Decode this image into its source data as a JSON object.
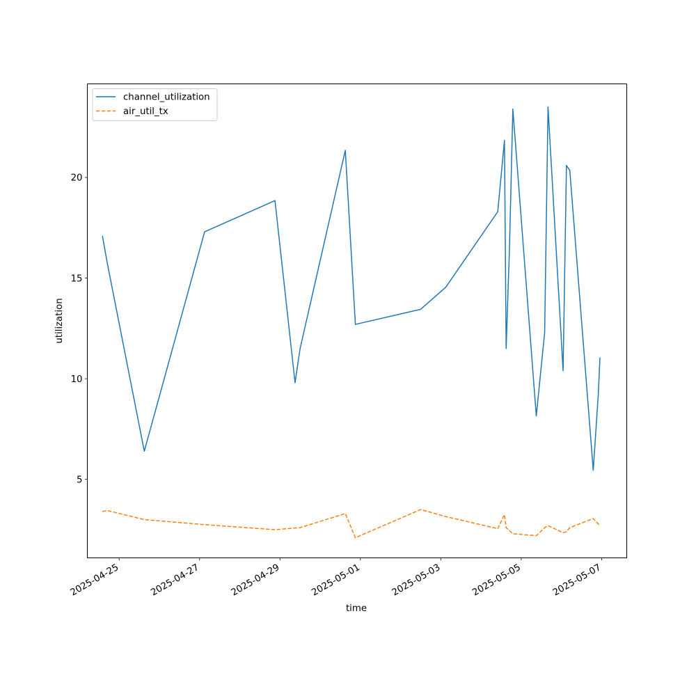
{
  "chart_data": {
    "type": "line",
    "xlabel": "time",
    "ylabel": "utilization",
    "x_type": "datetime",
    "xlim": [
      "2025-04-24T05:00",
      "2025-05-07T15:00"
    ],
    "ylim": [
      1.1,
      24.65
    ],
    "x_ticks": [
      "2025-04-25",
      "2025-04-27",
      "2025-04-29",
      "2025-05-01",
      "2025-05-03",
      "2025-05-05",
      "2025-05-07"
    ],
    "y_ticks": [
      5,
      10,
      15,
      20
    ],
    "grid": false,
    "legend_position": "upper left",
    "series": [
      {
        "name": "channel_utilization",
        "color": "#1f77b4",
        "linestyle": "solid",
        "points": [
          [
            "2025-04-24T14:00",
            17.1
          ],
          [
            "2025-04-24T17:00",
            15.7
          ],
          [
            "2025-04-25T15:00",
            6.4
          ],
          [
            "2025-04-27T03:00",
            17.3
          ],
          [
            "2025-04-28T21:00",
            18.85
          ],
          [
            "2025-04-29T09:00",
            9.8
          ],
          [
            "2025-04-29T12:00",
            11.5
          ],
          [
            "2025-04-30T15:00",
            21.35
          ],
          [
            "2025-04-30T21:00",
            12.7
          ],
          [
            "2025-05-02T12:00",
            13.45
          ],
          [
            "2025-05-03T03:00",
            14.55
          ],
          [
            "2025-05-04T10:00",
            18.3
          ],
          [
            "2025-05-04T14:00",
            21.85
          ],
          [
            "2025-05-04T15:00",
            11.5
          ],
          [
            "2025-05-04T17:00",
            16.5
          ],
          [
            "2025-05-04T19:00",
            23.4
          ],
          [
            "2025-05-05T09:00",
            8.15
          ],
          [
            "2025-05-05T14:00",
            12.3
          ],
          [
            "2025-05-05T16:00",
            23.5
          ],
          [
            "2025-05-06T01:00",
            10.4
          ],
          [
            "2025-05-06T03:00",
            20.6
          ],
          [
            "2025-05-06T05:00",
            20.35
          ],
          [
            "2025-05-06T19:00",
            5.45
          ],
          [
            "2025-05-06T22:00",
            9.2
          ],
          [
            "2025-05-06T23:00",
            11.05
          ]
        ]
      },
      {
        "name": "air_util_tx",
        "color": "#ff7f0e",
        "linestyle": "dashed",
        "points": [
          [
            "2025-04-24T14:00",
            3.4
          ],
          [
            "2025-04-24T17:00",
            3.45
          ],
          [
            "2025-04-25T15:00",
            3.0
          ],
          [
            "2025-04-27T03:00",
            2.75
          ],
          [
            "2025-04-28T21:00",
            2.5
          ],
          [
            "2025-04-29T12:00",
            2.6
          ],
          [
            "2025-04-30T15:00",
            3.3
          ],
          [
            "2025-04-30T21:00",
            2.1
          ],
          [
            "2025-05-02T12:00",
            3.5
          ],
          [
            "2025-05-03T03:00",
            3.15
          ],
          [
            "2025-05-04T10:00",
            2.55
          ],
          [
            "2025-05-04T14:00",
            3.25
          ],
          [
            "2025-05-04T15:00",
            2.6
          ],
          [
            "2025-05-04T19:00",
            2.3
          ],
          [
            "2025-05-05T09:00",
            2.2
          ],
          [
            "2025-05-05T14:00",
            2.6
          ],
          [
            "2025-05-05T16:00",
            2.7
          ],
          [
            "2025-05-06T01:00",
            2.35
          ],
          [
            "2025-05-06T03:00",
            2.4
          ],
          [
            "2025-05-06T05:00",
            2.6
          ],
          [
            "2025-05-06T19:00",
            3.05
          ],
          [
            "2025-05-06T23:00",
            2.7
          ]
        ]
      }
    ]
  }
}
